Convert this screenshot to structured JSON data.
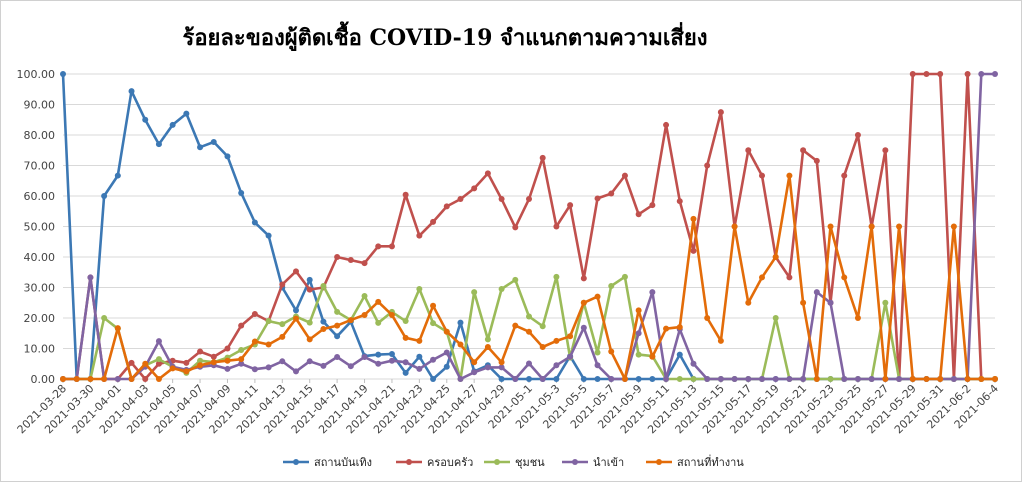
{
  "chart_data": {
    "type": "line",
    "title": "ร้อยละของผู้ติดเชื้อ COVID-19 จำแนกตามความเสี่ยง",
    "xlabel": "",
    "ylabel": "",
    "ylim": [
      0,
      100
    ],
    "y_ticks": [
      "0.00",
      "10.00",
      "20.00",
      "30.00",
      "40.00",
      "50.00",
      "60.00",
      "70.00",
      "80.00",
      "90.00",
      "100.00"
    ],
    "grid": true,
    "legend_position": "bottom",
    "x": [
      "2021-03-28",
      "2021-03-29",
      "2021-03-30",
      "2021-03-31",
      "2021-04-01",
      "2021-04-02",
      "2021-04-03",
      "2021-04-04",
      "2021-04-05",
      "2021-04-06",
      "2021-04-07",
      "2021-04-08",
      "2021-04-09",
      "2021-04-10",
      "2021-04-11",
      "2021-04-12",
      "2021-04-13",
      "2021-04-14",
      "2021-04-15",
      "2021-04-16",
      "2021-04-17",
      "2021-04-18",
      "2021-04-19",
      "2021-04-20",
      "2021-04-21",
      "2021-04-22",
      "2021-04-23",
      "2021-04-24",
      "2021-04-25",
      "2021-04-26",
      "2021-04-27",
      "2021-04-28",
      "2021-04-29",
      "2021-04-30",
      "2021-05-1",
      "2021-05-2",
      "2021-05-3",
      "2021-05-4",
      "2021-05-5",
      "2021-05-6",
      "2021-05-7",
      "2021-05-8",
      "2021-05-9",
      "2021-05-10",
      "2021-05-11",
      "2021-05-12",
      "2021-05-13",
      "2021-05-14",
      "2021-05-15",
      "2021-05-16",
      "2021-05-17",
      "2021-05-18",
      "2021-05-19",
      "2021-05-20",
      "2021-05-21",
      "2021-05-22",
      "2021-05-23",
      "2021-05-24",
      "2021-05-25",
      "2021-05-26",
      "2021-05-27",
      "2021-05-28",
      "2021-05-29",
      "2021-05-30",
      "2021-05-31",
      "2021-06-1",
      "2021-06-2",
      "2021-06-3",
      "2021-06-4"
    ],
    "x_tick_labels": [
      "2021-03-28",
      "2021-03-30",
      "2021-04-01",
      "2021-04-03",
      "2021-04-05",
      "2021-04-07",
      "2021-04-09",
      "2021-04-11",
      "2021-04-13",
      "2021-04-15",
      "2021-04-17",
      "2021-04-19",
      "2021-04-21",
      "2021-04-23",
      "2021-04-25",
      "2021-04-27",
      "2021-04-29",
      "2021-05-1",
      "2021-05-3",
      "2021-05-5",
      "2021-05-7",
      "2021-05-9",
      "2021-05-11",
      "2021-05-13",
      "2021-05-15",
      "2021-05-17",
      "2021-05-19",
      "2021-05-21",
      "2021-05-23",
      "2021-05-25",
      "2021-05-27",
      "2021-05-29",
      "2021-05-31",
      "2021-06-2",
      "2021-06-4"
    ],
    "series": [
      {
        "name": "สถานบันเทิง",
        "color": "#3c78b4",
        "values": [
          100,
          0,
          0,
          60,
          66.7,
          94.4,
          85,
          77,
          83.3,
          87,
          76,
          77.7,
          73,
          61,
          51.3,
          47,
          30,
          22.5,
          32.5,
          18.8,
          14,
          18.8,
          7.5,
          8,
          8.2,
          2,
          7.3,
          0,
          4,
          18.5,
          2.5,
          4.5,
          0,
          0,
          0,
          0,
          0,
          7.5,
          0,
          0,
          0,
          0,
          0,
          0,
          0,
          8,
          0,
          0,
          0,
          0,
          0,
          0,
          0,
          0,
          0,
          0,
          0,
          0,
          0,
          0,
          0,
          0,
          0,
          0,
          0,
          0,
          0,
          0,
          0
        ]
      },
      {
        "name": "ครอบครัว",
        "color": "#c0504d",
        "values": [
          0,
          0,
          33.3,
          0,
          0,
          5.3,
          0,
          5,
          6,
          5.3,
          9,
          7.3,
          10,
          17.5,
          21.3,
          19,
          31,
          35.3,
          29.3,
          30,
          40,
          39,
          38,
          43.5,
          43.5,
          60.4,
          47,
          51.5,
          56.6,
          59,
          62.5,
          67.4,
          59,
          49.7,
          59,
          72.5,
          50,
          57,
          33,
          59.2,
          60.8,
          66.7,
          54,
          57,
          83.3,
          58.3,
          42,
          70,
          87.5,
          50,
          75,
          66.7,
          40,
          33.3,
          75,
          71.5,
          25,
          66.7,
          80,
          50,
          75,
          0,
          100,
          100,
          100,
          0,
          100,
          0,
          0
        ]
      },
      {
        "name": "ชุมชน",
        "color": "#9bbb59",
        "values": [
          0,
          0,
          0,
          20,
          16.5,
          0,
          4.5,
          6.5,
          4,
          2,
          6,
          5.5,
          7,
          9.5,
          11.3,
          19,
          18,
          20.5,
          18.5,
          30.5,
          22,
          19.3,
          27.2,
          18.4,
          22,
          19,
          29.5,
          18.3,
          15.5,
          0,
          28.5,
          13,
          29.5,
          32.5,
          20.5,
          17.3,
          33.5,
          7,
          25,
          8.7,
          30.5,
          33.5,
          8,
          7.5,
          0,
          0,
          0,
          0,
          0,
          0,
          0,
          0,
          20,
          0,
          0,
          0,
          0,
          0,
          0,
          0,
          25,
          0,
          0,
          0,
          0,
          0,
          0,
          0,
          0
        ]
      },
      {
        "name": "นำเข้า",
        "color": "#8064a2",
        "values": [
          0,
          0,
          33.3,
          0,
          0,
          0,
          4,
          12.4,
          4,
          3,
          4,
          4.5,
          3.3,
          5,
          3.2,
          3.8,
          5.8,
          2.5,
          5.8,
          4.3,
          7.2,
          4.2,
          7.2,
          5,
          6,
          5.5,
          3.3,
          6.3,
          8.7,
          0,
          2.2,
          3.8,
          3.8,
          0,
          5.1,
          0,
          4.5,
          7.3,
          16.8,
          4.5,
          0,
          0,
          15,
          28.5,
          0,
          16.3,
          5,
          0,
          0,
          0,
          0,
          0,
          0,
          0,
          0,
          28.5,
          25,
          0,
          0,
          0,
          0,
          0,
          0,
          0,
          0,
          0,
          0,
          100,
          100
        ]
      },
      {
        "name": "สถานที่ทำงาน",
        "color": "#e36c09",
        "values": [
          0,
          0,
          0,
          0,
          16.7,
          0,
          5,
          0,
          3.5,
          2.5,
          4.5,
          5.5,
          6,
          6.5,
          12.3,
          11.3,
          13.8,
          19.8,
          13,
          16.4,
          17.5,
          19.3,
          21,
          25.3,
          21,
          13.5,
          12.5,
          24,
          15.5,
          11.3,
          5.5,
          10.5,
          5.5,
          17.5,
          15.5,
          10.5,
          12.5,
          14,
          25,
          27,
          9,
          0,
          22.5,
          7.3,
          16.5,
          17,
          52.5,
          20,
          12.5,
          50,
          25,
          33.3,
          40,
          66.7,
          25,
          0,
          50,
          33.3,
          20,
          50,
          0,
          50,
          0,
          0,
          0,
          50,
          0,
          0,
          0
        ]
      }
    ]
  }
}
